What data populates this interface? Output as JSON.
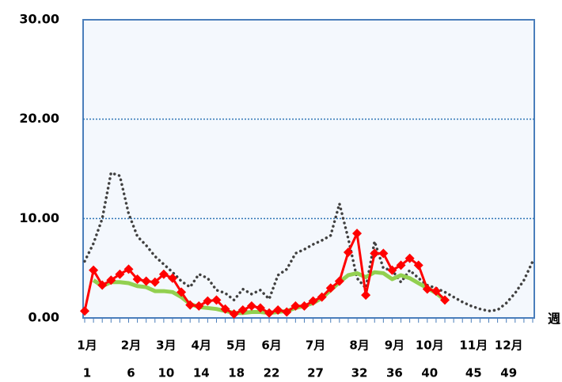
{
  "chart_data": {
    "type": "line",
    "x": [
      1,
      2,
      3,
      4,
      5,
      6,
      7,
      8,
      9,
      10,
      11,
      12,
      13,
      14,
      15,
      16,
      17,
      18,
      19,
      20,
      21,
      22,
      23,
      24,
      25,
      26,
      27,
      28,
      29,
      30,
      31,
      32,
      33,
      34,
      35,
      36,
      37,
      38,
      39,
      40,
      41,
      42,
      43,
      44,
      45,
      46,
      47,
      48,
      49,
      50,
      51,
      52
    ],
    "xlim": [
      1,
      52
    ],
    "xticks": [
      1,
      6,
      10,
      14,
      18,
      22,
      27,
      32,
      36,
      40,
      45,
      49
    ],
    "month_labels": [
      "1月",
      "2月",
      "3月",
      "4月",
      "5月",
      "6月",
      "7月",
      "8月",
      "9月",
      "10月",
      "11月",
      "12月"
    ],
    "x_label": "週",
    "ylim": [
      0,
      30
    ],
    "yticks": [
      {
        "value": 0,
        "label": "0.00"
      },
      {
        "value": 10,
        "label": "10.00"
      },
      {
        "value": 20,
        "label": "20.00"
      },
      {
        "value": 30,
        "label": "30.00"
      }
    ],
    "grid": true,
    "series": [
      {
        "color": "#404040",
        "style": "dotted",
        "values": [
          5.7,
          7.5,
          10,
          14.6,
          14.3,
          10.5,
          8.2,
          7.3,
          6.2,
          5.4,
          4.6,
          3.7,
          3.1,
          4.4,
          4.0,
          2.8,
          2.5,
          1.8,
          2.9,
          2.4,
          2.8,
          1.9,
          4.3,
          4.9,
          6.5,
          6.9,
          7.4,
          7.8,
          8.3,
          11.5,
          8.0,
          4.0,
          3.0,
          7.7,
          5.0,
          4.8,
          3.6,
          4.8,
          4.0,
          3.3,
          3.0,
          2.6,
          2.1,
          1.6,
          1.2,
          0.9,
          0.7,
          0.8,
          1.5,
          2.5,
          3.8,
          5.7
        ]
      },
      {
        "color": "#92d050",
        "style": "thick",
        "values": [
          null,
          3.8,
          3.2,
          3.6,
          3.6,
          3.5,
          3.2,
          3.1,
          2.7,
          2.7,
          2.6,
          2.1,
          1.4,
          1.1,
          1.0,
          0.9,
          0.7,
          0.5,
          0.5,
          0.6,
          0.6,
          0.5,
          0.6,
          0.7,
          1.0,
          1.2,
          1.5,
          2.0,
          2.8,
          3.6,
          4.3,
          4.5,
          4.1,
          4.6,
          4.5,
          3.9,
          4.3,
          4.0,
          3.5,
          3.0,
          2.5,
          1.8,
          null,
          null,
          null,
          null,
          null,
          null,
          null,
          null,
          null,
          null
        ]
      },
      {
        "color": "#ff0000",
        "style": "markers",
        "values": [
          0.7,
          4.8,
          3.3,
          3.8,
          4.4,
          4.9,
          3.9,
          3.7,
          3.6,
          4.4,
          4.0,
          2.6,
          1.3,
          1.2,
          1.7,
          1.8,
          0.9,
          0.4,
          0.8,
          1.2,
          1.0,
          0.5,
          0.8,
          0.6,
          1.2,
          1.2,
          1.7,
          2.1,
          3.0,
          3.7,
          6.6,
          8.5,
          2.3,
          6.5,
          6.5,
          4.8,
          5.3,
          6.0,
          5.3,
          2.9,
          2.7,
          1.8,
          null,
          null,
          null,
          null,
          null,
          null,
          null,
          null,
          null,
          null
        ]
      }
    ]
  }
}
